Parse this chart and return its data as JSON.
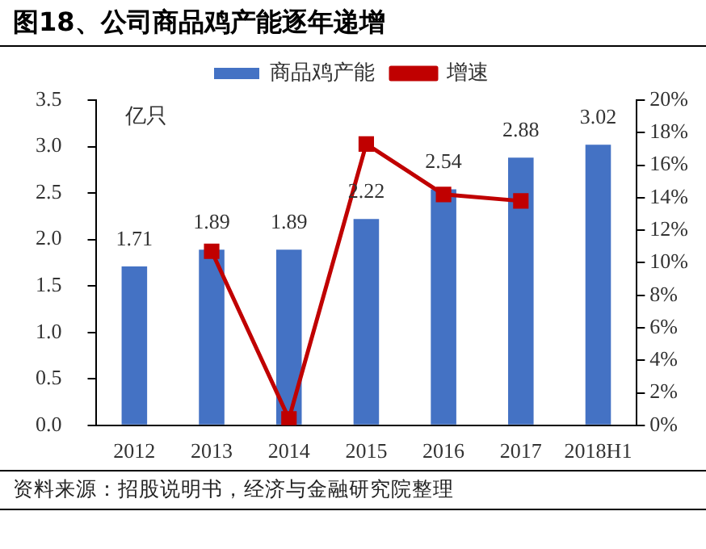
{
  "chart_data": {
    "type": "bar",
    "title": "图18、公司商品鸡产能逐年递增",
    "ylabel": "亿只",
    "categories": [
      "2012",
      "2013",
      "2014",
      "2015",
      "2016",
      "2017",
      "2018H1"
    ],
    "series": [
      {
        "name": "商品鸡产能",
        "color": "#4472c4",
        "values": [
          1.71,
          1.89,
          1.89,
          2.22,
          2.54,
          2.88,
          3.02
        ],
        "value_labels": [
          "1.71",
          "1.89",
          "1.89",
          "2.22",
          "2.54",
          "2.88",
          "3.02"
        ]
      },
      {
        "name": "增速",
        "type": "line",
        "axis": "y2",
        "color": "#c00000",
        "marker": "square",
        "values": [
          null,
          10.7,
          0.4,
          17.3,
          14.2,
          13.8,
          null
        ]
      }
    ],
    "ylim": [
      0,
      3.5
    ],
    "yticks": [
      {
        "value": 0,
        "label": "0.0"
      },
      {
        "value": 0.5,
        "label": "0.5"
      },
      {
        "value": 1,
        "label": "1.0"
      },
      {
        "value": 1.5,
        "label": "1.5"
      },
      {
        "value": 2,
        "label": "2.0"
      },
      {
        "value": 2.5,
        "label": "2.5"
      },
      {
        "value": 3,
        "label": "3.0"
      },
      {
        "value": 3.5,
        "label": "3.5"
      }
    ],
    "y2lim": [
      0,
      20
    ],
    "y2ticks": [
      {
        "value": 0,
        "label": "0%"
      },
      {
        "value": 2,
        "label": "2%"
      },
      {
        "value": 4,
        "label": "4%"
      },
      {
        "value": 6,
        "label": "6%"
      },
      {
        "value": 8,
        "label": "8%"
      },
      {
        "value": 10,
        "label": "10%"
      },
      {
        "value": 12,
        "label": "12%"
      },
      {
        "value": 14,
        "label": "14%"
      },
      {
        "value": 16,
        "label": "16%"
      },
      {
        "value": 18,
        "label": "18%"
      },
      {
        "value": 20,
        "label": "20%"
      }
    ],
    "grid": false,
    "legend": "top",
    "annotations": [
      "资料来源：招股说明书，经济与金融研究院整理"
    ]
  }
}
